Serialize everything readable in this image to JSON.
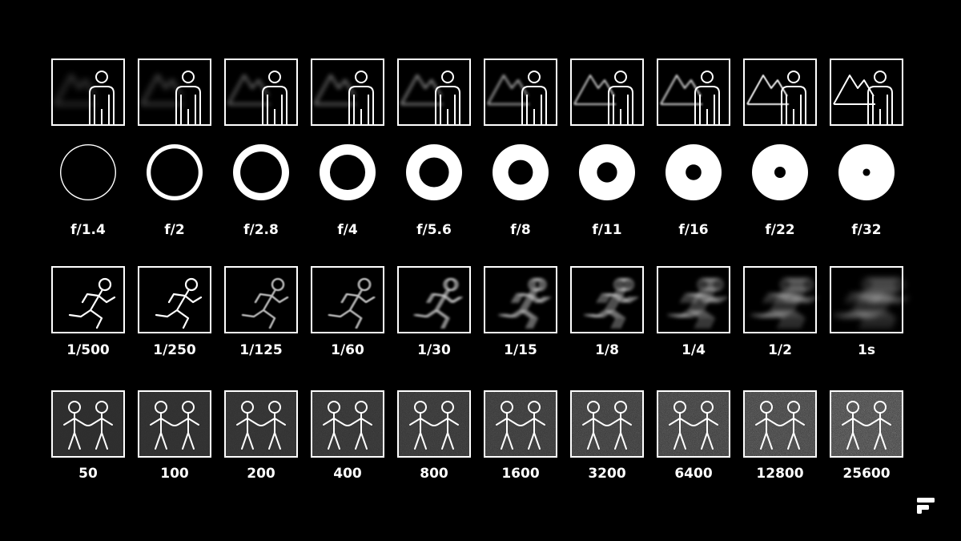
{
  "colors": {
    "background": "#000000",
    "foreground": "#ffffff",
    "noise_base": "#2b2b2b"
  },
  "rows": {
    "aperture": {
      "icon": "mountain-person-icon",
      "ring_icon": "aperture-ring-icon",
      "labels": [
        "f/1.4",
        "f/2",
        "f/2.8",
        "f/4",
        "f/5.6",
        "f/8",
        "f/11",
        "f/16",
        "f/22",
        "f/32"
      ],
      "background_sharpness": [
        0.0,
        0.11,
        0.22,
        0.33,
        0.44,
        0.56,
        0.67,
        0.78,
        0.89,
        1.0
      ],
      "opening_fraction": [
        0.96,
        0.85,
        0.74,
        0.63,
        0.53,
        0.44,
        0.36,
        0.28,
        0.2,
        0.13
      ]
    },
    "shutter": {
      "icon": "running-man-icon",
      "labels": [
        "1/500",
        "1/250",
        "1/125",
        "1/60",
        "1/30",
        "1/15",
        "1/8",
        "1/4",
        "1/2",
        "1s"
      ],
      "motion_blur": [
        0.0,
        0.0,
        0.1,
        0.2,
        0.3,
        0.42,
        0.55,
        0.7,
        0.85,
        1.0
      ]
    },
    "iso": {
      "icon": "two-people-holding-hands-icon",
      "labels": [
        "50",
        "100",
        "200",
        "400",
        "800",
        "1600",
        "3200",
        "6400",
        "12800",
        "25600"
      ],
      "noise_level": [
        0.0,
        0.08,
        0.16,
        0.26,
        0.36,
        0.46,
        0.58,
        0.7,
        0.84,
        1.0
      ]
    }
  },
  "brand": {
    "logo_icon": "frandroid-f-logo-icon"
  }
}
